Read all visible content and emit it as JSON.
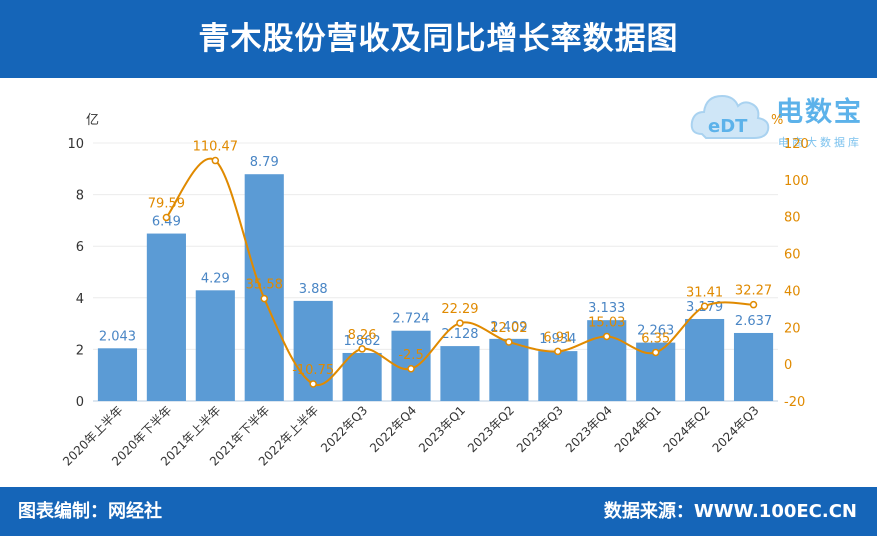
{
  "header": {
    "title": "青木股份营收及同比增长率数据图"
  },
  "footer": {
    "left": "图表编制：网经社",
    "right": "数据来源：WWW.100EC.CN"
  },
  "logo": {
    "brand": "电数宝",
    "sub": "电商大数据库",
    "mark": "eDT"
  },
  "colors": {
    "bar": "#5b9bd5",
    "line": "#e08a00",
    "header": "#1565b8",
    "bar_label": "#4a86c5",
    "line_label": "#e08a00"
  },
  "chart_data": {
    "type": "bar+line",
    "categories": [
      "2020年上半年",
      "2020年下半年",
      "2021年上半年",
      "2021年下半年",
      "2022年上半年",
      "2022年Q3",
      "2022年Q4",
      "2023年Q1",
      "2023年Q2",
      "2023年Q3",
      "2023年Q4",
      "2024年Q1",
      "2024年Q2",
      "2024年Q3"
    ],
    "series": [
      {
        "name": "营收",
        "type": "bar",
        "axis": "left",
        "values": [
          2.043,
          6.49,
          4.29,
          8.79,
          3.88,
          1.862,
          2.724,
          2.128,
          2.409,
          1.934,
          3.133,
          2.263,
          3.179,
          2.637
        ],
        "labels": [
          "2.043",
          "6.49",
          "4.29",
          "8.79",
          "3.88",
          "1.862",
          "2.724",
          "2.128",
          "2.409",
          "1.934",
          "3.133",
          "2.263",
          "3.179",
          "2.637"
        ]
      },
      {
        "name": "同比增长率",
        "type": "line",
        "axis": "right",
        "values": [
          null,
          79.59,
          110.47,
          35.58,
          -10.75,
          8.26,
          -2.5,
          22.29,
          12.02,
          6.91,
          15.03,
          6.35,
          31.41,
          32.27
        ],
        "labels": [
          "",
          "79.59",
          "110.47",
          "35.58",
          "-10.75",
          "8.26",
          "-2.5",
          "22.29",
          "12.02",
          "6.91",
          "15.03",
          "6.35",
          "31.41",
          "32.27"
        ]
      }
    ],
    "y_left": {
      "unit": "亿",
      "min": 0,
      "max": 10,
      "ticks": [
        0,
        2,
        4,
        6,
        8,
        10
      ]
    },
    "y_right": {
      "unit": "%",
      "min": -20,
      "max": 120,
      "ticks": [
        -20,
        0,
        20,
        40,
        60,
        80,
        100,
        120
      ]
    }
  }
}
